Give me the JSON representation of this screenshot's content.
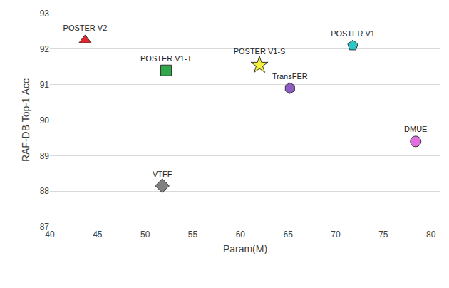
{
  "chart_data": {
    "type": "scatter",
    "x_label": "Param(M)",
    "y_label": "RAF-DB Top-1 Acc",
    "xlim": [
      40,
      81
    ],
    "xticks": [
      40,
      45,
      50,
      55,
      60,
      65,
      70,
      75,
      80
    ],
    "ylim": [
      87,
      93
    ],
    "yticks": [
      87,
      88,
      89,
      90,
      91,
      92,
      93
    ],
    "grid": "y",
    "series": [
      {
        "name": "POSTER V2",
        "x": [
          43.7
        ],
        "values": [
          92.25
        ],
        "color": "#e0282c",
        "marker": "triangle-up"
      },
      {
        "name": "POSTER V1-T",
        "x": [
          52.2
        ],
        "values": [
          91.4
        ],
        "color": "#2ea84a",
        "marker": "square"
      },
      {
        "name": "POSTER V1-S",
        "x": [
          62.0
        ],
        "values": [
          91.55
        ],
        "color": "#f5f03a",
        "marker": "star"
      },
      {
        "name": "POSTER V1",
        "x": [
          71.8
        ],
        "values": [
          92.1
        ],
        "color": "#2ec6c6",
        "marker": "pentagon"
      },
      {
        "name": "TransFER",
        "x": [
          65.2
        ],
        "values": [
          90.9
        ],
        "color": "#8e5cc4",
        "marker": "hexagon"
      },
      {
        "name": "DMUE",
        "x": [
          78.4
        ],
        "values": [
          89.4
        ],
        "color": "#e070e0",
        "marker": "circle"
      },
      {
        "name": "VTFF",
        "x": [
          51.8
        ],
        "values": [
          88.15
        ],
        "color": "#808080",
        "marker": "diamond"
      }
    ]
  }
}
